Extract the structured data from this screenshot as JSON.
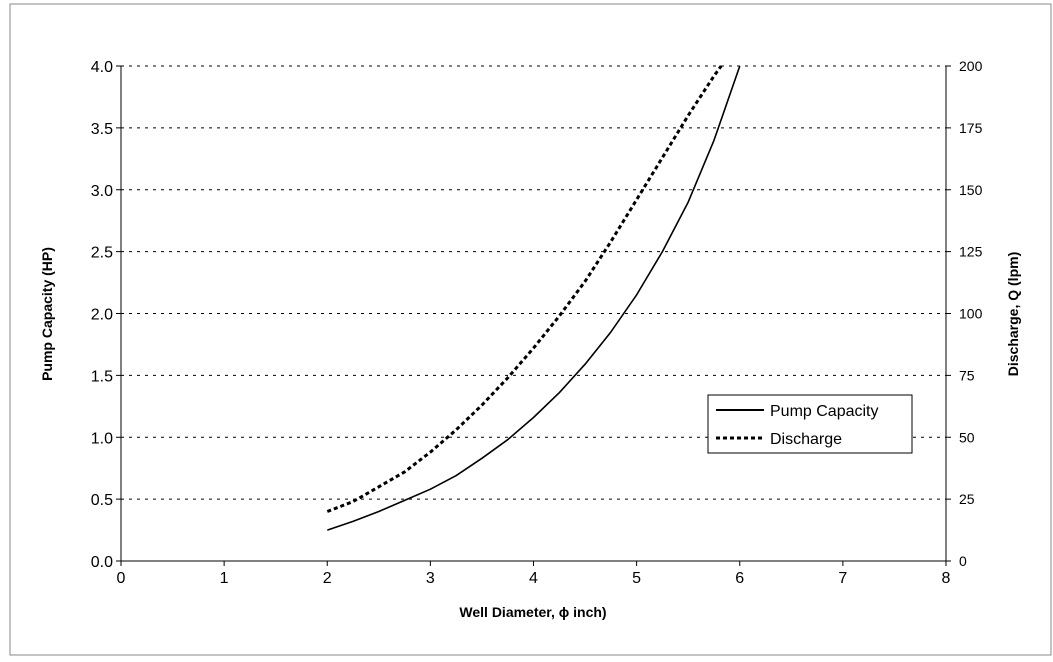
{
  "chart_data": {
    "type": "line",
    "title": "",
    "xlabel": "Well Diameter, ϕ inch)",
    "ylabel": "Pump Capacity (HP)",
    "y2label": "Discharge, Q (lpm)",
    "xlim": [
      0,
      8
    ],
    "ylim": [
      0,
      4.0
    ],
    "y2lim": [
      0,
      200
    ],
    "x_ticks": [
      "0",
      "1",
      "2",
      "3",
      "4",
      "5",
      "6",
      "7",
      "8"
    ],
    "y_ticks": [
      "0.0",
      "0.5",
      "1.0",
      "1.5",
      "2.0",
      "2.5",
      "3.0",
      "3.5",
      "4.0"
    ],
    "y2_ticks": [
      "0",
      "25",
      "50",
      "75",
      "100",
      "125",
      "150",
      "175",
      "200"
    ],
    "grid": "horizontal-dashed",
    "legend_position": "right",
    "series": [
      {
        "name": "Pump Capacity",
        "axis": "left",
        "style": "solid",
        "color": "#000000",
        "x": [
          2.0,
          2.25,
          2.5,
          2.75,
          3.0,
          3.25,
          3.5,
          3.75,
          4.0,
          4.25,
          4.5,
          4.75,
          5.0,
          5.25,
          5.5,
          5.75,
          6.0
        ],
        "y": [
          0.25,
          0.32,
          0.4,
          0.49,
          0.58,
          0.69,
          0.83,
          0.98,
          1.16,
          1.36,
          1.59,
          1.85,
          2.15,
          2.5,
          2.9,
          3.4,
          4.0
        ]
      },
      {
        "name": "Discharge",
        "axis": "right",
        "style": "dashed",
        "color": "#000000",
        "x": [
          2.0,
          2.25,
          2.5,
          2.75,
          3.0,
          3.25,
          3.5,
          3.75,
          4.0,
          4.25,
          4.5,
          4.75,
          5.0,
          5.25,
          5.5,
          5.75,
          5.82
        ],
        "y": [
          20,
          24,
          30,
          36,
          44,
          53,
          63,
          74,
          86,
          99,
          113,
          129,
          146,
          163,
          180,
          196,
          200
        ]
      }
    ]
  }
}
